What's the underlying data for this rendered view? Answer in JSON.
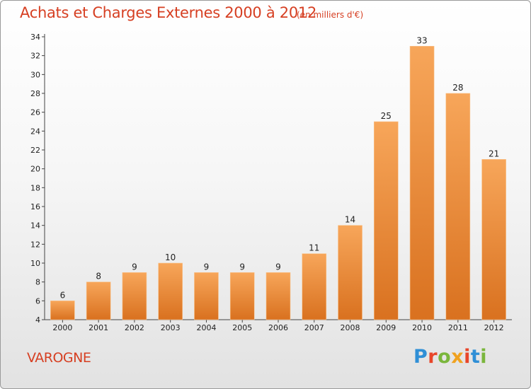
{
  "header": {
    "title": "Achats et Charges Externes 2000 à 2012",
    "subtitle": "(en milliers d'€)"
  },
  "footer": {
    "commune": "VAROGNE",
    "logo_text": "Proxiti"
  },
  "colors": {
    "bar_top": "#f7a65a",
    "bar_bottom": "#d9711f",
    "title": "#d63f22"
  },
  "chart_data": {
    "type": "bar",
    "title": "Achats et Charges Externes 2000 à 2012",
    "categories": [
      "2000",
      "2001",
      "2002",
      "2003",
      "2004",
      "2005",
      "2006",
      "2007",
      "2008",
      "2009",
      "2010",
      "2011",
      "2012"
    ],
    "values": [
      6,
      8,
      9,
      10,
      9,
      9,
      9,
      11,
      14,
      25,
      33,
      28,
      21
    ],
    "ylim": [
      4,
      34
    ],
    "yticks": [
      4,
      6,
      8,
      10,
      12,
      14,
      16,
      18,
      20,
      22,
      24,
      26,
      28,
      30,
      32,
      34
    ],
    "grid": false,
    "legend": "none"
  }
}
